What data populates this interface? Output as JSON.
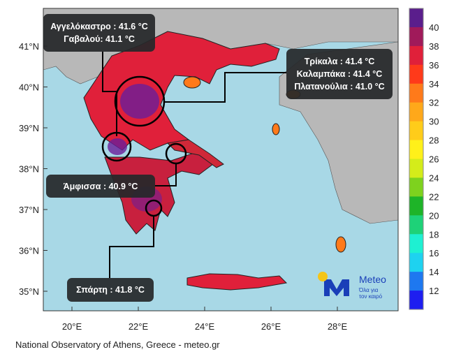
{
  "map": {
    "lat_labels": [
      "41°N",
      "40°N",
      "39°N",
      "38°N",
      "37°N",
      "36°N",
      "35°N"
    ],
    "lon_labels": [
      "20°E",
      "22°E",
      "24°E",
      "26°E",
      "28°E"
    ],
    "colorbar": {
      "ticks": [
        "40",
        "38",
        "36",
        "34",
        "32",
        "30",
        "28",
        "26",
        "24",
        "22",
        "20",
        "18",
        "16",
        "14",
        "12"
      ],
      "colors": [
        "#5a1e8c",
        "#a01a5a",
        "#e0203a",
        "#ff3a1a",
        "#ff7a1a",
        "#ffa81a",
        "#ffcc1a",
        "#fff01a",
        "#d4ec1a",
        "#7ed21e",
        "#1eb428",
        "#1ed278",
        "#1ef0d2",
        "#1ed2f0",
        "#1e78f0",
        "#1e1ef0"
      ]
    },
    "colors": {
      "sea": "#a8d8e6",
      "land_other": "#b8b8b8",
      "box": "#26282a"
    }
  },
  "callouts": [
    {
      "lines": [
        "Αγγελόκαστρο : 41.6 °C",
        "Γαβαλού: 41.1 °C"
      ]
    },
    {
      "lines": [
        "Τρίκαλα : 41.4 °C",
        "Καλαμπάκα : 41.4 °C",
        "Πλατανούλια : 41.0 °C"
      ]
    },
    {
      "lines": [
        "Άμφισσα : 40.9 °C"
      ]
    },
    {
      "lines": [
        "Σπάρτη : 41.8  °C"
      ]
    }
  ],
  "logo": {
    "name": "Meteo",
    "tagline_1": "Όλα για",
    "tagline_2": "τον καιρό"
  },
  "credit": "National Observatory of Athens, Greece - meteo.gr"
}
